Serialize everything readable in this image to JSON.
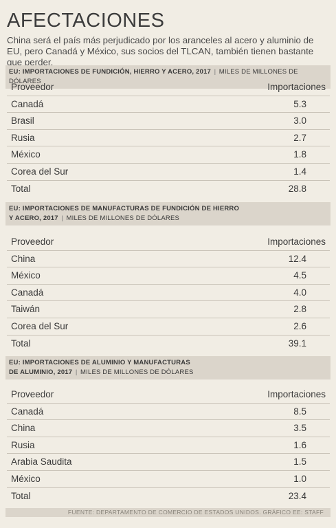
{
  "title": "AFECTACIONES",
  "subtitle": "China será el país más perjudicado por los aranceles al acero y aluminio de EU, pero Canadá y México, sus socios del TLCAN, también tienen bastante que perder.",
  "sections": [
    {
      "heading_line1": "EU: IMPORTACIONES DE FUNDICIÓN, HIERRO Y ACERO, 2017",
      "heading_line2": "",
      "unit": "MILES DE MILLONES DE DÓLARES",
      "col_name": "Proveedor",
      "col_value": "Importaciones",
      "rows": [
        {
          "name": "Canadá",
          "value": "5.3"
        },
        {
          "name": "Brasil",
          "value": "3.0"
        },
        {
          "name": "Rusia",
          "value": "2.7"
        },
        {
          "name": "México",
          "value": "1.8"
        },
        {
          "name": "Corea del Sur",
          "value": "1.4"
        }
      ],
      "total_label": "Total",
      "total_value": "28.8"
    },
    {
      "heading_line1": "EU: IMPORTACIONES DE MANUFACTURAS DE FUNDICIÓN DE HIERRO",
      "heading_line2": "Y ACERO, 2017",
      "unit": "MILES DE MILLONES DE DÓLARES",
      "col_name": "Proveedor",
      "col_value": "Importaciones",
      "rows": [
        {
          "name": "China",
          "value": "12.4"
        },
        {
          "name": "México",
          "value": "4.5"
        },
        {
          "name": "Canadá",
          "value": "4.0"
        },
        {
          "name": "Taiwán",
          "value": "2.8"
        },
        {
          "name": "Corea del Sur",
          "value": "2.6"
        }
      ],
      "total_label": "Total",
      "total_value": "39.1"
    },
    {
      "heading_line1": "EU: IMPORTACIONES DE ALUMINIO Y MANUFACTURAS",
      "heading_line2": "DE ALUMINIO, 2017",
      "unit": "MILES DE MILLONES DE DÓLARES",
      "col_name": "Proveedor",
      "col_value": "Importaciones",
      "rows": [
        {
          "name": "Canadá",
          "value": "8.5"
        },
        {
          "name": "China",
          "value": "3.5"
        },
        {
          "name": "Rusia",
          "value": "1.6"
        },
        {
          "name": "Arabia Saudita",
          "value": "1.5"
        },
        {
          "name": "México",
          "value": "1.0"
        }
      ],
      "total_label": "Total",
      "total_value": "23.4"
    }
  ],
  "footer": "FUENTE: DEPARTAMENTO DE COMERCIO DE ESTADOS UNIDOS.  GRÁFICO EE: STAFF"
}
